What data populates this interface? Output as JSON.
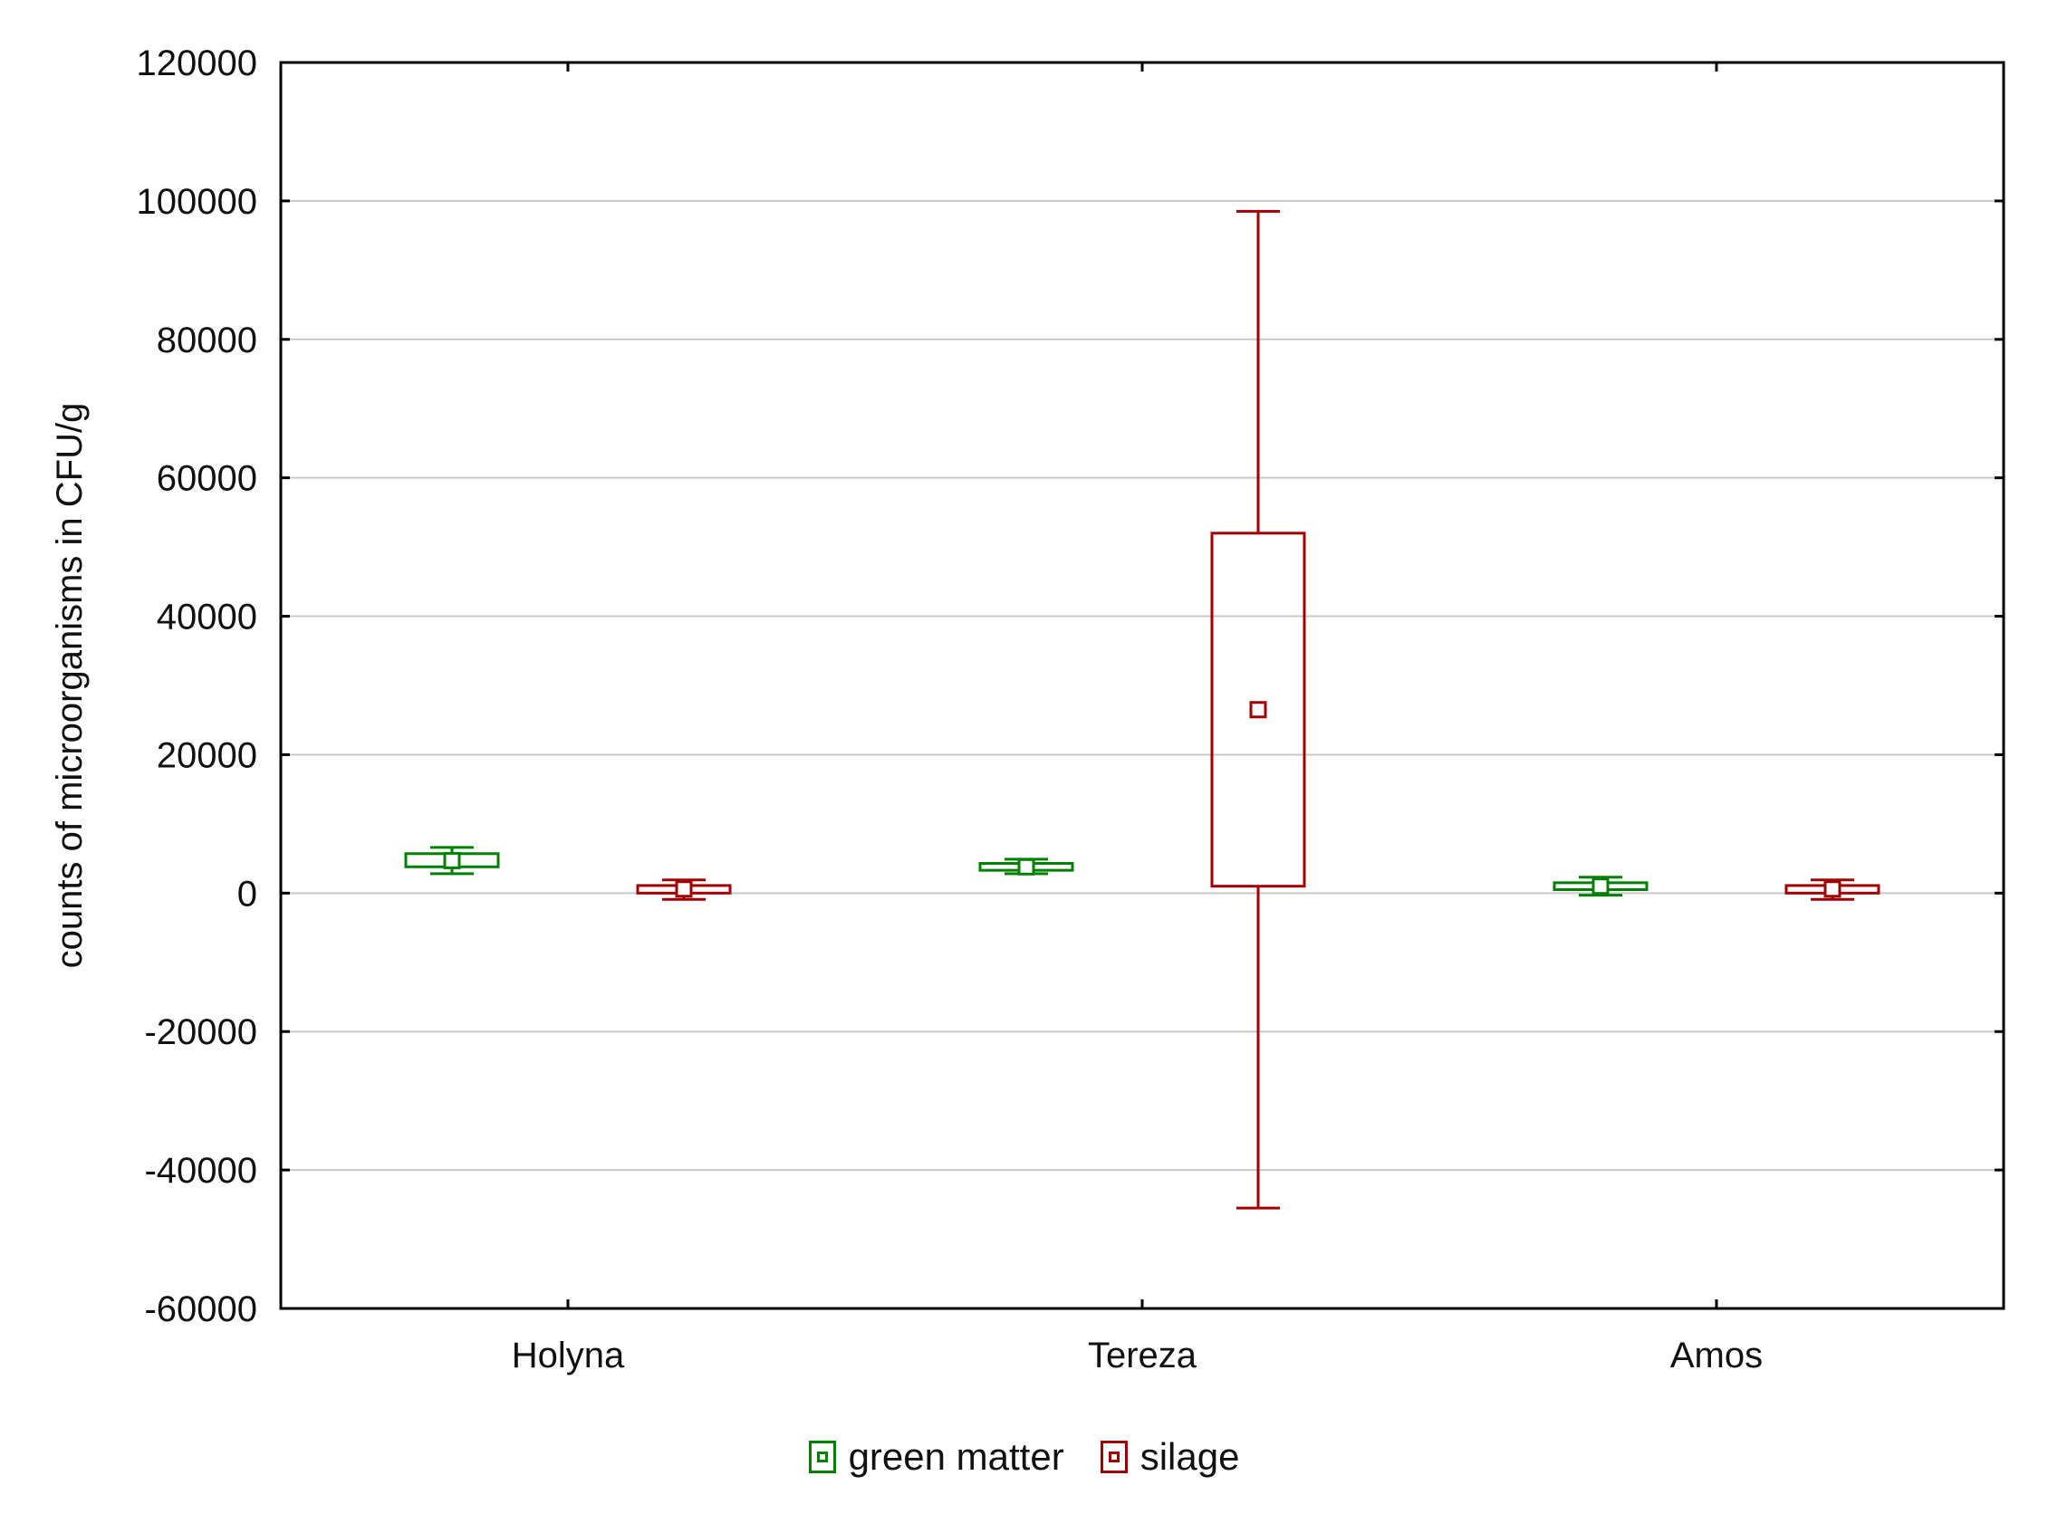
{
  "chart_data": {
    "type": "box",
    "title": "",
    "xlabel": "",
    "ylabel": "counts of microorganisms in CFU/g",
    "categories": [
      "Holyna",
      "Tereza",
      "Amos"
    ],
    "ylim": [
      -60000,
      120000
    ],
    "yticks": [
      -60000,
      -40000,
      -20000,
      0,
      20000,
      40000,
      60000,
      80000,
      100000,
      120000
    ],
    "ytick_labels": [
      "-60000",
      "-40000",
      "-20000",
      "0",
      "20000",
      "40000",
      "60000",
      "80000",
      "100000",
      "120000"
    ],
    "grid": true,
    "legend_position": "bottom",
    "series": [
      {
        "name": "green matter",
        "color": "#008000",
        "boxes": [
          {
            "whisker_low": 2800,
            "box_low": 3800,
            "mean": 4700,
            "box_high": 5700,
            "whisker_high": 6600
          },
          {
            "whisker_low": 2800,
            "box_low": 3300,
            "mean": 3800,
            "box_high": 4300,
            "whisker_high": 4900
          },
          {
            "whisker_low": -300,
            "box_low": 500,
            "mean": 1000,
            "box_high": 1500,
            "whisker_high": 2300
          }
        ]
      },
      {
        "name": "silage",
        "color": "#a00000",
        "boxes": [
          {
            "whisker_low": -900,
            "box_low": 0,
            "mean": 600,
            "box_high": 1100,
            "whisker_high": 1900
          },
          {
            "whisker_low": -45500,
            "box_low": 1000,
            "mean": 26500,
            "box_high": 52000,
            "whisker_high": 98500
          },
          {
            "whisker_low": -900,
            "box_low": 0,
            "mean": 600,
            "box_high": 1100,
            "whisker_high": 1900
          }
        ]
      }
    ]
  }
}
